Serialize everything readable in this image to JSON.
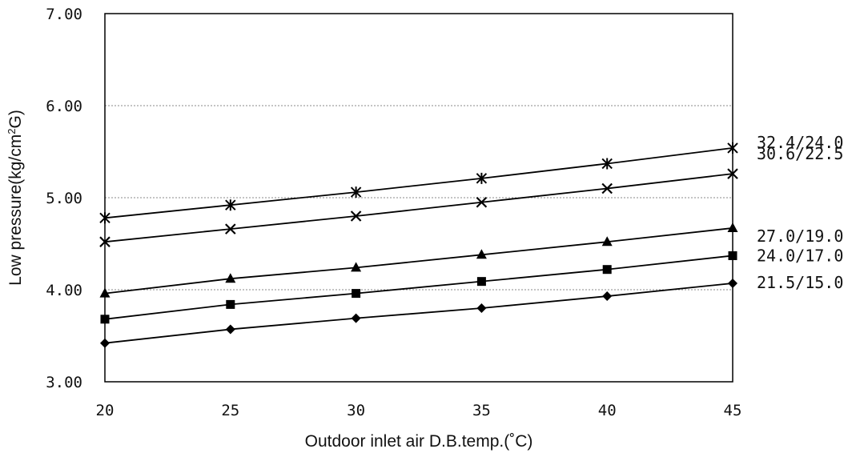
{
  "chart_data": {
    "type": "line",
    "title": "",
    "xlabel": "Outdoor inlet air D.B.temp.(˚C)",
    "ylabel_main": "Low pressure(kg/cm",
    "ylabel_sup": "2",
    "ylabel_end": "G)",
    "x": [
      20,
      25,
      30,
      35,
      40,
      45
    ],
    "x_ticks": [
      "20",
      "25",
      "30",
      "35",
      "40",
      "45"
    ],
    "xlim": [
      20,
      45
    ],
    "ylim": [
      3.0,
      7.0
    ],
    "y_ticks": [
      {
        "value": 3.0,
        "label": "3.00"
      },
      {
        "value": 4.0,
        "label": "4.00"
      },
      {
        "value": 5.0,
        "label": "5.00"
      },
      {
        "value": 6.0,
        "label": "6.00"
      },
      {
        "value": 7.0,
        "label": "7.00"
      }
    ],
    "grid": "horizontal-dotted",
    "series": [
      {
        "name": "32.4/24.0",
        "marker": "asterisk",
        "values": [
          4.78,
          4.92,
          5.06,
          5.21,
          5.37,
          5.54
        ]
      },
      {
        "name": "30.6/22.5",
        "marker": "cross",
        "values": [
          4.52,
          4.66,
          4.8,
          4.95,
          5.1,
          5.26
        ]
      },
      {
        "name": "27.0/19.0",
        "marker": "triangle",
        "values": [
          3.96,
          4.12,
          4.24,
          4.38,
          4.52,
          4.67
        ]
      },
      {
        "name": "24.0/17.0",
        "marker": "square",
        "values": [
          3.68,
          3.84,
          3.96,
          4.09,
          4.22,
          4.37
        ]
      },
      {
        "name": "21.5/15.0",
        "marker": "diamond",
        "values": [
          3.42,
          3.57,
          3.69,
          3.8,
          3.93,
          4.07
        ]
      }
    ]
  }
}
